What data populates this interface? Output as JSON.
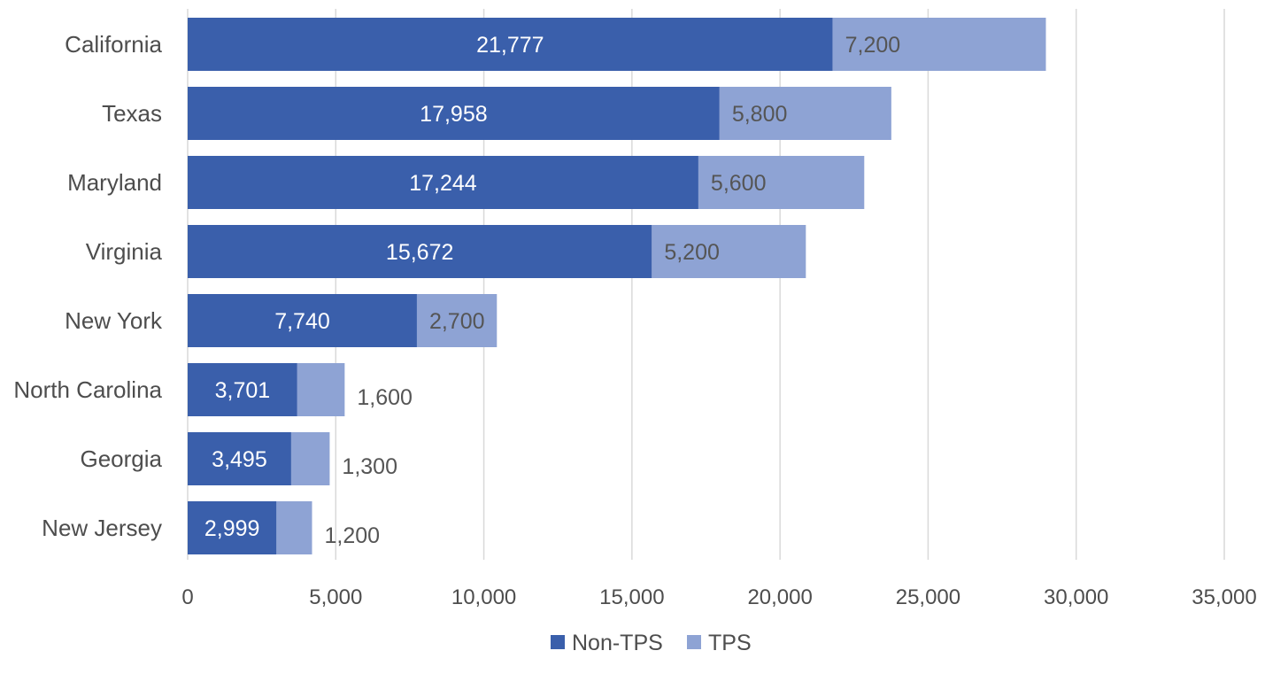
{
  "chart_data": {
    "type": "bar",
    "orientation": "horizontal",
    "stacked": true,
    "categories": [
      "California",
      "Texas",
      "Maryland",
      "Virginia",
      "New York",
      "North Carolina",
      "Georgia",
      "New Jersey"
    ],
    "series": [
      {
        "name": "Non-TPS",
        "color": "#3a5fab",
        "values": [
          21777,
          17958,
          17244,
          15672,
          7740,
          3701,
          3495,
          2999
        ],
        "labels": [
          "21,777",
          "17,958",
          "17,244",
          "15,672",
          "7,740",
          "3,701",
          "3,495",
          "2,999"
        ]
      },
      {
        "name": "TPS",
        "color": "#8ea3d4",
        "values": [
          7200,
          5800,
          5600,
          5200,
          2700,
          1600,
          1300,
          1200
        ],
        "labels": [
          "7,200",
          "5,800",
          "5,600",
          "5,200",
          "2,700",
          "1,600",
          "1,300",
          "1,200"
        ]
      }
    ],
    "xlim": [
      0,
      35000
    ],
    "xticks": [
      0,
      5000,
      10000,
      15000,
      20000,
      25000,
      30000,
      35000
    ],
    "xtick_labels": [
      "0",
      "5,000",
      "10,000",
      "15,000",
      "20,000",
      "25,000",
      "30,000",
      "35,000"
    ],
    "grid": "vertical",
    "legend": "bottom"
  }
}
